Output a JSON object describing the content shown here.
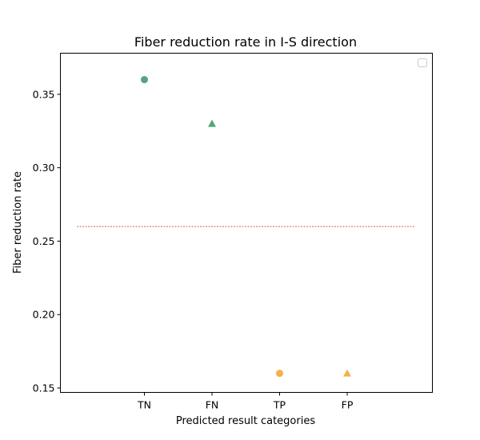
{
  "chart_data": {
    "type": "scatter",
    "title": "Fiber reduction rate in I-S direction",
    "xlabel": "Predicted result categories",
    "ylabel": "Fiber reduction rate",
    "categories": [
      "TN",
      "FN",
      "TP",
      "FP"
    ],
    "points": [
      {
        "category": "TN",
        "value": 0.36,
        "marker": "circle",
        "color": "#52a67a"
      },
      {
        "category": "FN",
        "value": 0.33,
        "marker": "triangle",
        "color": "#52a67a"
      },
      {
        "category": "TP",
        "value": 0.16,
        "marker": "circle",
        "color": "#f6b04b"
      },
      {
        "category": "FP",
        "value": 0.16,
        "marker": "triangle",
        "color": "#f6b04b"
      }
    ],
    "reference_line": {
      "value": 0.26,
      "style": "dashed",
      "color": "#d62728"
    },
    "ylim": [
      0.147,
      0.378
    ],
    "yticks": [
      "0.15",
      "0.20",
      "0.25",
      "0.30",
      "0.35"
    ],
    "grid": false,
    "legend": {
      "placement": "top-right",
      "entries": []
    }
  }
}
